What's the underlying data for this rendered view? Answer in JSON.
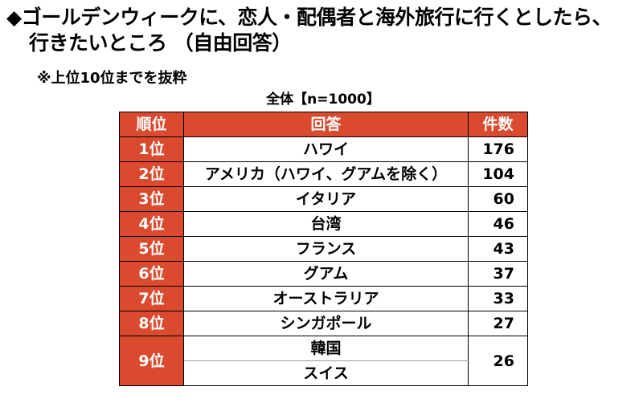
{
  "title": {
    "line1": "◆ゴールデンウィークに、恋人・配偶者と海外旅行に行くとしたら、",
    "line2": "行きたいところ （自由回答）"
  },
  "note": "※上位10位までを抜粋",
  "caption": "全体【n=1000】",
  "table": {
    "headers": {
      "rank": "順位",
      "destination": "回答",
      "count": "件数"
    },
    "rows": [
      {
        "rank": "1位",
        "destinations": [
          "ハワイ"
        ],
        "count": "176"
      },
      {
        "rank": "2位",
        "destinations": [
          "アメリカ（ハワイ、グアムを除く）"
        ],
        "count": "104"
      },
      {
        "rank": "3位",
        "destinations": [
          "イタリア"
        ],
        "count": "60"
      },
      {
        "rank": "4位",
        "destinations": [
          "台湾"
        ],
        "count": "46"
      },
      {
        "rank": "5位",
        "destinations": [
          "フランス"
        ],
        "count": "43"
      },
      {
        "rank": "6位",
        "destinations": [
          "グアム"
        ],
        "count": "37"
      },
      {
        "rank": "7位",
        "destinations": [
          "オーストラリア"
        ],
        "count": "33"
      },
      {
        "rank": "8位",
        "destinations": [
          "シンガポール"
        ],
        "count": "27"
      },
      {
        "rank": "9位",
        "destinations": [
          "韓国",
          "スイス"
        ],
        "count": "26"
      }
    ],
    "colors": {
      "header_bg": "#d94a2e",
      "header_text": "#ffffff"
    }
  }
}
